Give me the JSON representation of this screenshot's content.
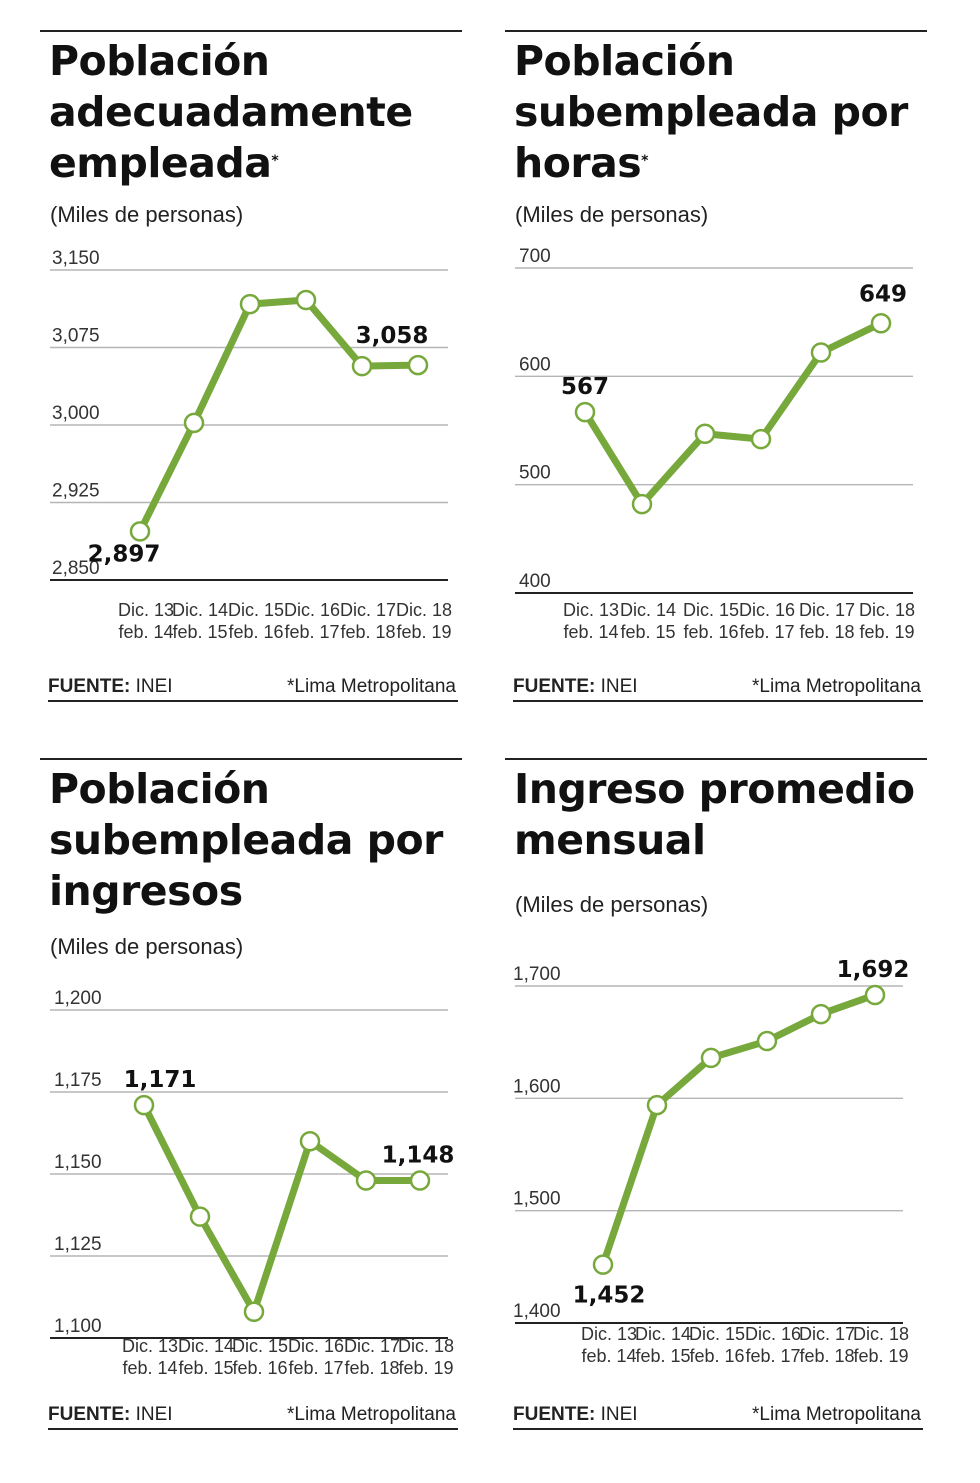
{
  "charts": [
    {
      "title": "Población adecuadamente empleada",
      "title_mark": "*",
      "subtitle": "(Miles de personas)",
      "source_label": "FUENTE:",
      "source": "INEI",
      "note": "*Lima Metropolitana"
    },
    {
      "title": "Población subempleada por horas",
      "title_mark": "*",
      "subtitle": "(Miles de personas)",
      "source_label": "FUENTE:",
      "source": "INEI",
      "note": "*Lima Metropolitana"
    },
    {
      "title": "Población subempleada por ingresos",
      "title_mark": "",
      "subtitle": "(Miles de personas)",
      "source_label": "FUENTE:",
      "source": "INEI",
      "note": "*Lima Metropolitana"
    },
    {
      "title": "Ingreso promedio mensual",
      "title_mark": "",
      "subtitle": "(Miles de personas)",
      "source_label": "FUENTE:",
      "source": "INEI",
      "note": "*Lima Metropolitana"
    }
  ],
  "chart_data": [
    {
      "type": "line",
      "categories": [
        [
          "Dic. 13",
          "feb. 14"
        ],
        [
          "Dic. 14",
          "feb. 15"
        ],
        [
          "Dic. 15",
          "feb. 16"
        ],
        [
          "Dic. 16",
          "feb. 17"
        ],
        [
          "Dic. 17",
          "feb. 18"
        ],
        [
          "Dic. 18",
          "feb. 19"
        ]
      ],
      "values": [
        2897,
        3002,
        3117,
        3121,
        3057,
        3058
      ],
      "data_labels": [
        {
          "index": 0,
          "text": "2,897"
        },
        {
          "index": 5,
          "text": "3,058"
        }
      ],
      "yticks": [
        2850,
        2925,
        3000,
        3075,
        3150
      ],
      "ytick_labels": [
        "2,850",
        "2,925",
        "3,000",
        "3,075",
        "3,150"
      ],
      "ylim": [
        2850,
        3150
      ],
      "grid": true,
      "color": "#77a83b"
    },
    {
      "type": "line",
      "categories": [
        [
          "Dic. 13",
          "feb. 14"
        ],
        [
          "Dic. 14",
          "feb. 15"
        ],
        [
          "Dic. 15",
          "feb. 16"
        ],
        [
          "Dic. 16",
          "feb. 17"
        ],
        [
          "Dic. 17",
          "feb. 18"
        ],
        [
          "Dic. 18",
          "feb. 19"
        ]
      ],
      "values": [
        567,
        482,
        547,
        542,
        622,
        649
      ],
      "data_labels": [
        {
          "index": 0,
          "text": "567"
        },
        {
          "index": 5,
          "text": "649"
        }
      ],
      "yticks": [
        400,
        500,
        600,
        700
      ],
      "ytick_labels": [
        "400",
        "500",
        "600",
        "700"
      ],
      "ylim": [
        400,
        700
      ],
      "grid": true,
      "color": "#77a83b"
    },
    {
      "type": "line",
      "categories": [
        [
          "Dic. 13",
          "feb. 14"
        ],
        [
          "Dic. 14",
          "feb. 15"
        ],
        [
          "Dic. 15",
          "feb. 16"
        ],
        [
          "Dic. 16",
          "feb. 17"
        ],
        [
          "Dic. 17",
          "feb. 18"
        ],
        [
          "Dic. 18",
          "feb. 19"
        ]
      ],
      "values": [
        1171,
        1137,
        1108,
        1160,
        1148,
        1148
      ],
      "data_labels": [
        {
          "index": 0,
          "text": "1,171"
        },
        {
          "index": 5,
          "text": "1,148"
        }
      ],
      "yticks": [
        1100,
        1125,
        1150,
        1175,
        1200
      ],
      "ytick_labels": [
        "1,100",
        "1,125",
        "1,150",
        "1,175",
        "1,200"
      ],
      "ylim": [
        1100,
        1200
      ],
      "grid": true,
      "color": "#77a83b"
    },
    {
      "type": "line",
      "categories": [
        [
          "Dic. 13",
          "feb. 14"
        ],
        [
          "Dic. 14",
          "feb. 15"
        ],
        [
          "Dic. 15",
          "feb. 16"
        ],
        [
          "Dic. 16",
          "feb. 17"
        ],
        [
          "Dic. 17",
          "feb. 18"
        ],
        [
          "Dic. 18",
          "feb. 19"
        ]
      ],
      "values": [
        1452,
        1594,
        1636,
        1651,
        1675,
        1692
      ],
      "data_labels": [
        {
          "index": 0,
          "text": "1,452"
        },
        {
          "index": 5,
          "text": "1,692"
        }
      ],
      "yticks": [
        1400,
        1500,
        1600,
        1700
      ],
      "ytick_labels": [
        "1,400",
        "1,500",
        "1,600",
        "1,700"
      ],
      "ylim": [
        1400,
        1700
      ],
      "grid": true,
      "color": "#77a83b"
    }
  ]
}
